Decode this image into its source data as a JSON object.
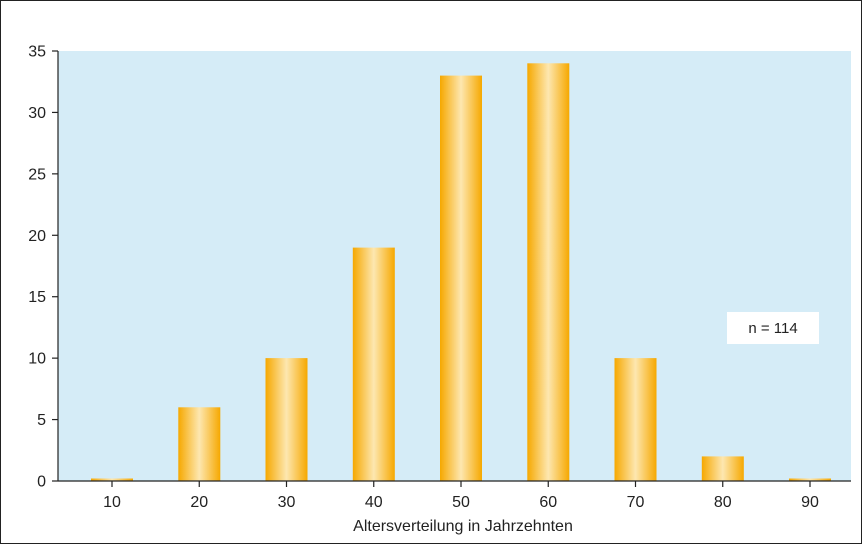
{
  "chart_data": {
    "type": "bar",
    "categories": [
      "10",
      "20",
      "30",
      "40",
      "50",
      "60",
      "70",
      "80",
      "90"
    ],
    "values": [
      0.2,
      6,
      10,
      19,
      33,
      34,
      10,
      2,
      0.2
    ],
    "xlabel": "Altersverteilung in Jahrzehnten",
    "ylabel": "",
    "ylim": [
      0,
      35
    ],
    "yticks": [
      0,
      5,
      10,
      15,
      20,
      25,
      30,
      35
    ],
    "annotation": "n = 114",
    "grid": false,
    "legend": "none",
    "colors": {
      "plot_background": "#d5ecf7",
      "bar_edge": "#f6a800",
      "bar_center": "#fde7b0",
      "axis": "#222222"
    }
  }
}
